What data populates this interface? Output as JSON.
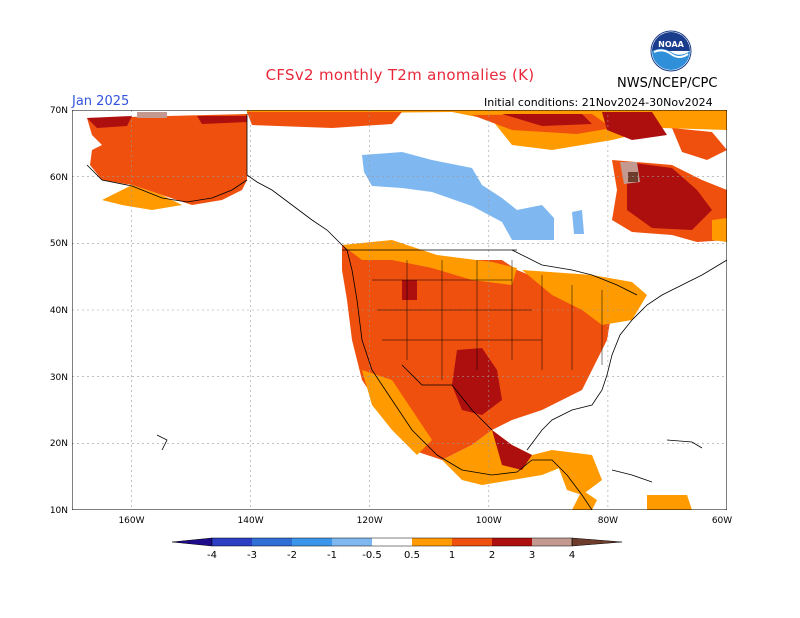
{
  "header": {
    "title": "CFSv2 monthly T2m anomalies (K)",
    "month": "Jan 2025",
    "initial_conditions": "Initial conditions: 21Nov2024-30Nov2024",
    "agency": "NWS/NCEP/CPC",
    "logo_text": "NOAA"
  },
  "axes": {
    "lat_labels": [
      "70N",
      "60N",
      "50N",
      "40N",
      "30N",
      "20N",
      "10N"
    ],
    "lon_labels": [
      "160W",
      "140W",
      "120W",
      "100W",
      "80W",
      "60W"
    ]
  },
  "colorbar": {
    "labels": [
      "-4",
      "-3",
      "-2",
      "-1",
      "-0.5",
      "0.5",
      "1",
      "2",
      "3",
      "4"
    ],
    "colors": {
      "lt_m4": "#1e0c8c",
      "m4_m3": "#2c3fc4",
      "m3_m2": "#2f6fd6",
      "m2_m1": "#3a96ea",
      "m1_m05": "#7fb8f0",
      "neutral": "#ffffff",
      "p05_p1": "#ff9a00",
      "p1_p2": "#f0500e",
      "p2_p3": "#ad0e0e",
      "p3_p4": "#c49a90",
      "gt_p4": "#6e3c2a"
    }
  }
}
